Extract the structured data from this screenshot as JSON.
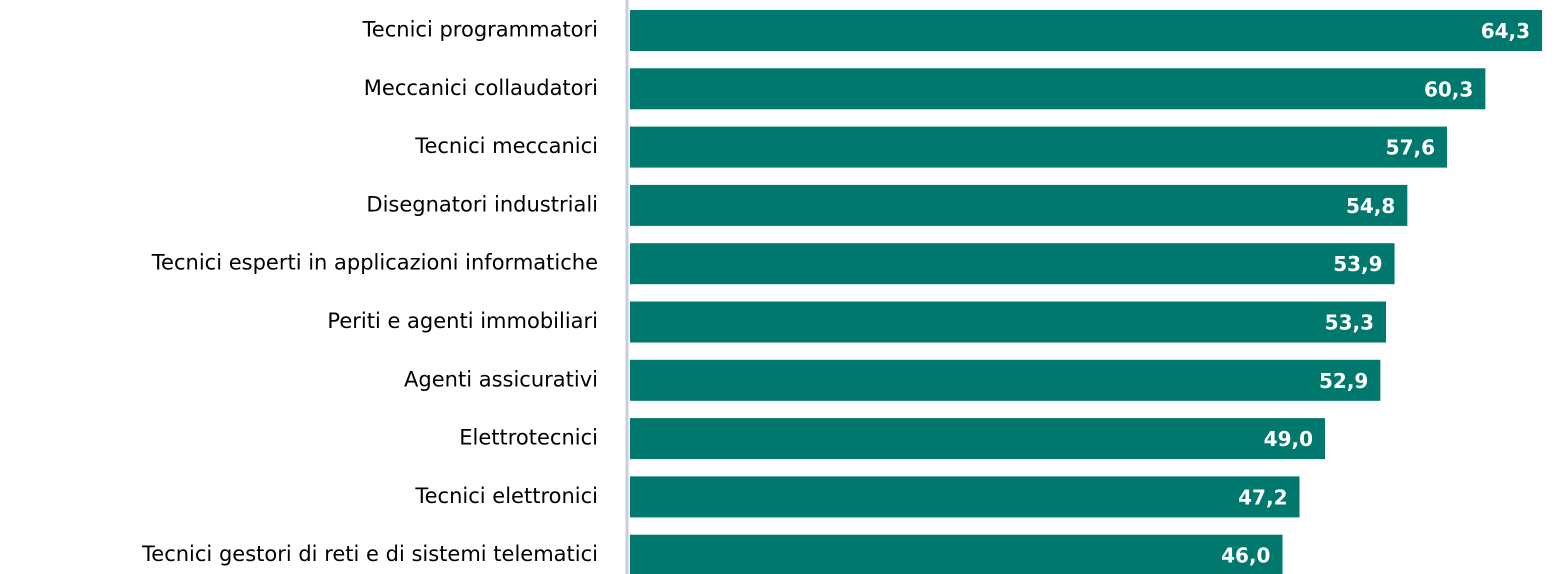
{
  "chart_data": {
    "type": "bar",
    "orientation": "horizontal",
    "categories": [
      "Tecnici programmatori",
      "Meccanici collaudatori",
      "Tecnici meccanici",
      "Disegnatori industriali",
      "Tecnici esperti in applicazioni informatiche",
      "Periti e agenti immobiliari",
      "Agenti assicurativi",
      "Elettrotecnici",
      "Tecnici elettronici",
      "Tecnici gestori di reti e di sistemi telematici"
    ],
    "values": [
      64.3,
      60.3,
      57.6,
      54.8,
      53.9,
      53.3,
      52.9,
      49.0,
      47.2,
      46.0
    ],
    "value_labels": [
      "64,3",
      "60,3",
      "57,6",
      "54,8",
      "53,9",
      "53,3",
      "52,9",
      "49,0",
      "47,2",
      "46,0"
    ],
    "color": "#00786d",
    "xlim": [
      0,
      65
    ]
  }
}
